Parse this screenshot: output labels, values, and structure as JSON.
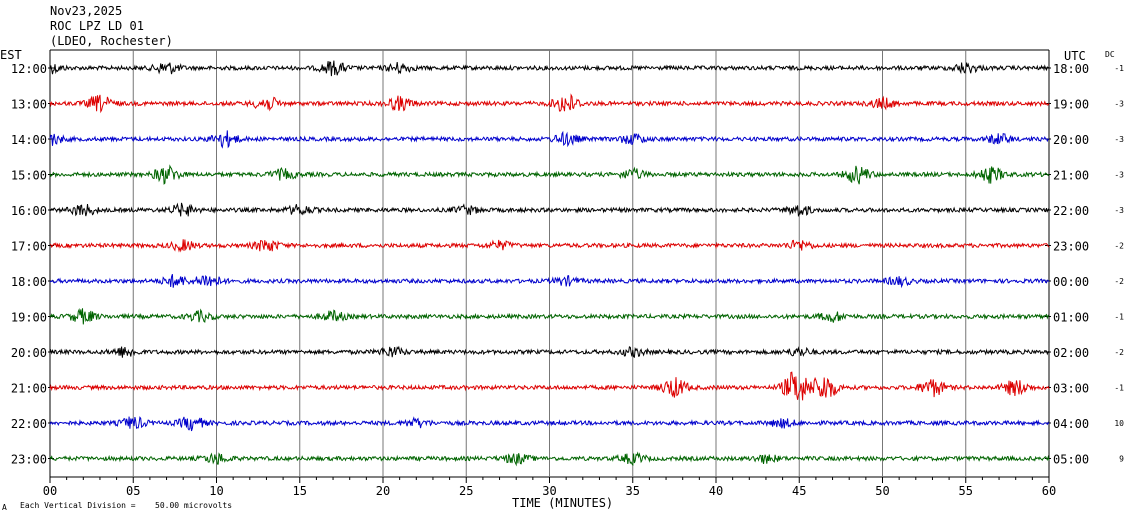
{
  "header": {
    "date": "Nov23,2025",
    "station": "ROC LPZ LD 01",
    "network": "(LDEO, Rochester)"
  },
  "labels": {
    "left_tz": "EST",
    "right_tz": "UTC",
    "dc": "DC",
    "xlabel": "TIME (MINUTES)",
    "scale_note": "Each Vertical Division =",
    "scale_value": "50.00 microvolts",
    "corner_mark": "A"
  },
  "colors": {
    "black": "#000000",
    "red": "#dd0000",
    "blue": "#0000cc",
    "green": "#006400",
    "grid": "#777777"
  },
  "chart_data": {
    "type": "line",
    "title": "",
    "xlabel": "TIME (MINUTES)",
    "ylabel": "",
    "xlim": [
      0,
      60
    ],
    "x_ticks": [
      "00",
      "05",
      "10",
      "15",
      "20",
      "25",
      "30",
      "35",
      "40",
      "45",
      "50",
      "55",
      "60"
    ],
    "grid": true,
    "series": [
      {
        "est": "12:00",
        "utc": "18:00",
        "dc": "-1",
        "color": "black",
        "bursts": [
          [
            0,
            0.5
          ],
          [
            7,
            0.6
          ],
          [
            17,
            0.7
          ],
          [
            21,
            0.5
          ],
          [
            55,
            0.5
          ]
        ]
      },
      {
        "est": "13:00",
        "utc": "19:00",
        "dc": "-3",
        "color": "red",
        "bursts": [
          [
            3,
            0.8
          ],
          [
            13,
            0.7
          ],
          [
            21,
            0.7
          ],
          [
            31,
            1.0
          ],
          [
            50,
            0.5
          ]
        ]
      },
      {
        "est": "14:00",
        "utc": "20:00",
        "dc": "-3",
        "color": "blue",
        "bursts": [
          [
            0,
            0.6
          ],
          [
            10.5,
            0.8
          ],
          [
            31,
            0.6
          ],
          [
            35,
            0.5
          ],
          [
            57,
            0.5
          ]
        ]
      },
      {
        "est": "15:00",
        "utc": "21:00",
        "dc": "-3",
        "color": "green",
        "bursts": [
          [
            7,
            0.9
          ],
          [
            14,
            0.5
          ],
          [
            35,
            0.5
          ],
          [
            48.5,
            0.9
          ],
          [
            56.5,
            0.8
          ]
        ]
      },
      {
        "est": "16:00",
        "utc": "22:00",
        "dc": "-3",
        "color": "black",
        "bursts": [
          [
            2,
            0.6
          ],
          [
            8,
            0.6
          ],
          [
            15,
            0.5
          ],
          [
            25,
            0.4
          ],
          [
            45,
            0.5
          ]
        ]
      },
      {
        "est": "17:00",
        "utc": "23:00",
        "dc": "-2",
        "color": "red",
        "bursts": [
          [
            8,
            0.5
          ],
          [
            13,
            0.6
          ],
          [
            27,
            0.4
          ],
          [
            45,
            0.5
          ]
        ]
      },
      {
        "est": "18:00",
        "utc": "00:00",
        "dc": "-2",
        "color": "blue",
        "bursts": [
          [
            7.5,
            0.6
          ],
          [
            9.5,
            0.7
          ],
          [
            31,
            0.4
          ],
          [
            51,
            0.4
          ]
        ]
      },
      {
        "est": "19:00",
        "utc": "01:00",
        "dc": "-1",
        "color": "green",
        "bursts": [
          [
            2,
            0.7
          ],
          [
            9,
            0.5
          ],
          [
            17,
            0.5
          ],
          [
            47,
            0.5
          ]
        ]
      },
      {
        "est": "20:00",
        "utc": "02:00",
        "dc": "-2",
        "color": "black",
        "bursts": [
          [
            4.5,
            0.5
          ],
          [
            20.5,
            0.5
          ],
          [
            35,
            0.4
          ],
          [
            45,
            0.4
          ]
        ]
      },
      {
        "est": "21:00",
        "utc": "03:00",
        "dc": "-1",
        "color": "red",
        "bursts": [
          [
            37.5,
            1.0
          ],
          [
            44.8,
            1.8
          ],
          [
            46.5,
            1.4
          ],
          [
            53,
            0.9
          ],
          [
            58,
            0.8
          ]
        ]
      },
      {
        "est": "22:00",
        "utc": "04:00",
        "dc": "10",
        "color": "blue",
        "bursts": [
          [
            5,
            0.6
          ],
          [
            8.5,
            0.7
          ],
          [
            22,
            0.4
          ],
          [
            44,
            0.4
          ]
        ]
      },
      {
        "est": "23:00",
        "utc": "05:00",
        "dc": "9",
        "color": "green",
        "bursts": [
          [
            10,
            0.5
          ],
          [
            28,
            0.5
          ],
          [
            35,
            0.5
          ],
          [
            43,
            0.4
          ]
        ]
      }
    ]
  }
}
